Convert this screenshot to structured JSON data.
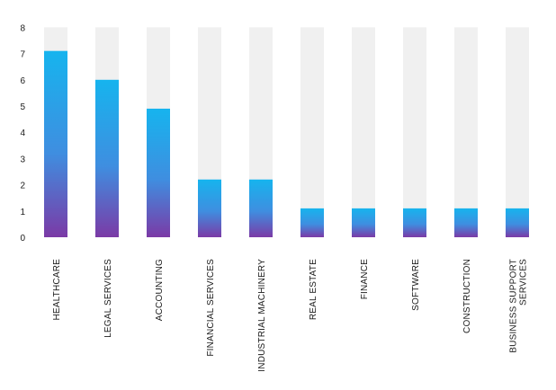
{
  "chart_data": {
    "type": "bar",
    "title": "",
    "xlabel": "",
    "ylabel": "",
    "ylim": [
      0,
      8
    ],
    "yticks": [
      0,
      1,
      2,
      3,
      4,
      5,
      6,
      7,
      8
    ],
    "grid": false,
    "legend": "none",
    "categories": [
      [
        "HEALTHCARE"
      ],
      [
        "LEGAL SERVICES"
      ],
      [
        "ACCOUNTING"
      ],
      [
        "FINANCIAL SERVICES"
      ],
      [
        "INDUSTRIAL MACHINERY"
      ],
      [
        "REAL ESTATE"
      ],
      [
        "FINANCE"
      ],
      [
        "SOFTWARE"
      ],
      [
        "CONSTRUCTION"
      ],
      [
        "BUSINESS SUPPORT",
        "SERVICES"
      ]
    ],
    "values": [
      7.1,
      6,
      4.9,
      2.2,
      2.2,
      1.1,
      1.1,
      1.1,
      1.1,
      1.1
    ],
    "colors": {
      "bar_top": "#16b4ee",
      "bar_bottom": "#7b3aa6",
      "track": "#f0f0f0"
    }
  }
}
